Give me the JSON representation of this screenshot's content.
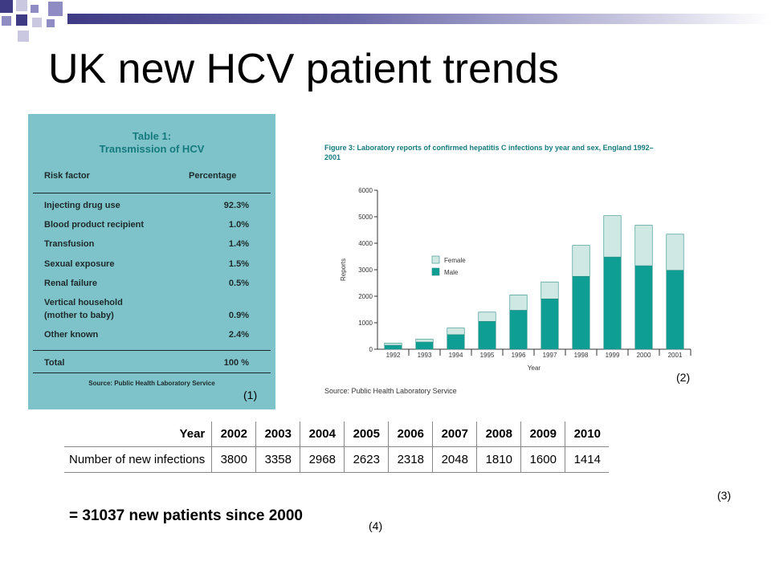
{
  "slide": {
    "title": "UK new HCV patient trends",
    "colors": {
      "decor_dark": "#3e3a84",
      "decor_mid": "#8e8cc2",
      "teal": "#0e9e93",
      "teal_light": "#cfe8e4",
      "panel": "#7ec3c9"
    }
  },
  "table1": {
    "title_line1": "Table 1:",
    "title_line2": "Transmission of HCV",
    "header_factor": "Risk factor",
    "header_pct": "Percentage",
    "rows": [
      {
        "factor": "Injecting drug use",
        "pct": "92.3%"
      },
      {
        "factor": "Blood product recipient",
        "pct": "1.0%"
      },
      {
        "factor": "Transfusion",
        "pct": "1.4%"
      },
      {
        "factor": "Sexual exposure",
        "pct": "1.5%"
      },
      {
        "factor": "Renal failure",
        "pct": "0.5%"
      },
      {
        "factor": "Vertical household",
        "factor2": "(mother to baby)",
        "pct": "0.9%"
      },
      {
        "factor": "Other known",
        "pct": "2.4%"
      }
    ],
    "total_label": "Total",
    "total_pct": "100 %",
    "source": "Source: Public Health Laboratory Service",
    "marker": "(1)"
  },
  "figure3": {
    "caption": "Figure 3: Laboratory reports of confirmed hepatitis C infections by year and sex, England 1992–2001",
    "source": "Source: Public Health Laboratory Service",
    "marker": "(2)"
  },
  "chart_data": {
    "type": "bar",
    "stacked": true,
    "categories": [
      "1992",
      "1993",
      "1994",
      "1995",
      "1996",
      "1997",
      "1998",
      "1999",
      "2000",
      "2001"
    ],
    "series": [
      {
        "name": "Male",
        "color": "#0e9e93",
        "values": [
          150,
          270,
          550,
          1050,
          1470,
          1900,
          2750,
          3480,
          3150,
          2980
        ]
      },
      {
        "name": "Female",
        "color": "#cfe8e4",
        "values": [
          80,
          110,
          250,
          350,
          580,
          640,
          1170,
          1560,
          1530,
          1360
        ]
      }
    ],
    "xlabel": "Year",
    "ylabel": "Reports",
    "ylim": [
      0,
      6000
    ],
    "yticks": [
      "0",
      "1000",
      "2000",
      "3000",
      "4000",
      "5000",
      "6000"
    ],
    "legend_position": "upper-left",
    "grid": false
  },
  "infections_table": {
    "row_header_year": "Year",
    "row_header_count": "Number of new infections",
    "years": [
      "2002",
      "2003",
      "2004",
      "2005",
      "2006",
      "2007",
      "2008",
      "2009",
      "2010"
    ],
    "counts": [
      "3800",
      "3358",
      "2968",
      "2623",
      "2318",
      "2048",
      "1810",
      "1600",
      "1414"
    ],
    "marker": "(3)"
  },
  "summary": {
    "text": "= 31037 new patients since 2000",
    "marker": "(4)"
  }
}
